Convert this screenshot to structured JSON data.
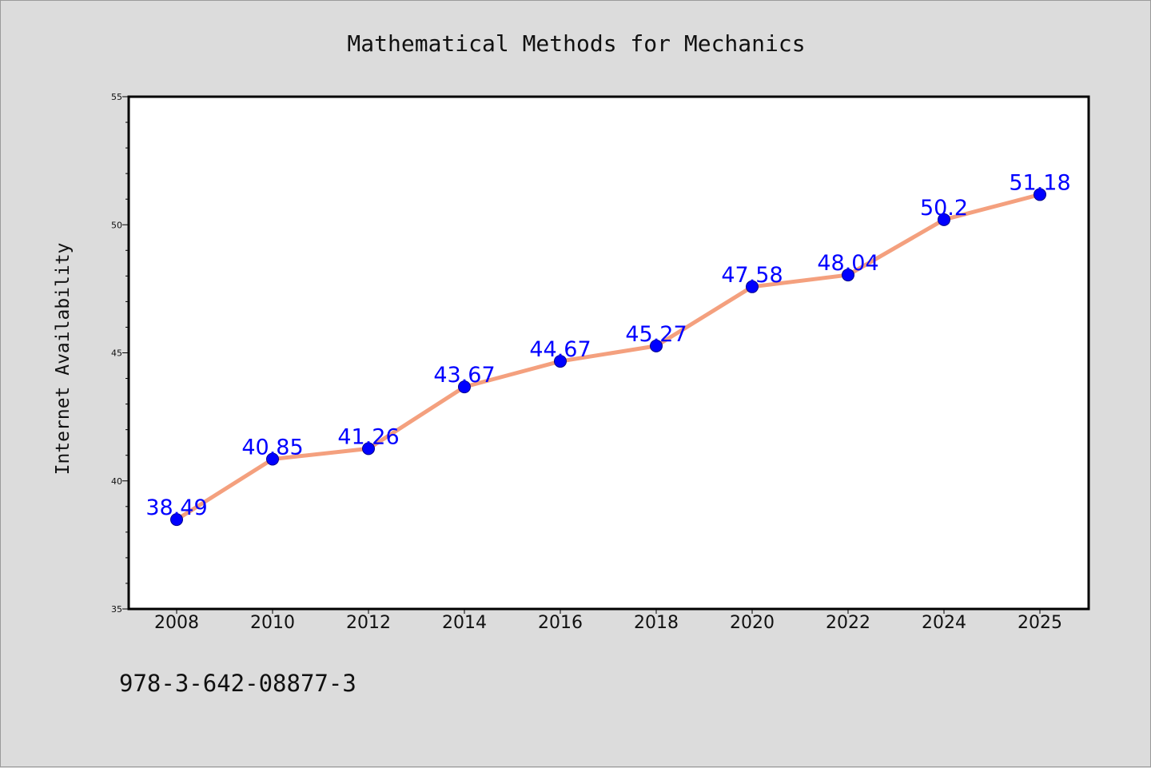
{
  "chart_data": {
    "type": "line",
    "title": "Mathematical Methods for Mechanics",
    "ylabel": "Internet Availability",
    "xlabel": "",
    "categories": [
      "2008",
      "2010",
      "2012",
      "2014",
      "2016",
      "2018",
      "2020",
      "2022",
      "2024",
      "2025"
    ],
    "series": [
      {
        "values": [
          38.49,
          40.85,
          41.26,
          43.67,
          44.67,
          45.27,
          47.58,
          48.04,
          50.2,
          51.18
        ]
      }
    ],
    "data_labels": [
      "38.49",
      "40.85",
      "41.26",
      "43.67",
      "44.67",
      "45.27",
      "47.58",
      "48.04",
      "50.2",
      "51.18"
    ],
    "ylim": [
      35,
      55
    ],
    "yticks": [
      "35",
      "40",
      "45",
      "50",
      "55"
    ],
    "grid": false,
    "colors": {
      "line": "#f4a07e",
      "marker": "#0000ff",
      "label": "#0000ff",
      "background": "#dcdcdc",
      "plot_bg": "#ffffff"
    }
  },
  "footer": {
    "isbn": "978-3-642-08877-3"
  }
}
